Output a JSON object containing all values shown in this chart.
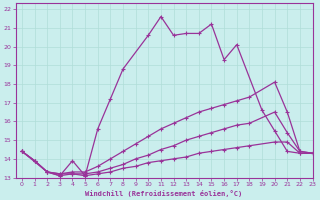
{
  "title": "",
  "xlabel": "Windchill (Refroidissement éolien,°C)",
  "ylabel": "",
  "xlim": [
    -0.5,
    23
  ],
  "ylim": [
    13,
    22.3
  ],
  "yticks": [
    13,
    14,
    15,
    16,
    17,
    18,
    19,
    20,
    21,
    22
  ],
  "xticks": [
    0,
    1,
    2,
    3,
    4,
    5,
    6,
    7,
    8,
    9,
    10,
    11,
    12,
    13,
    14,
    15,
    16,
    17,
    18,
    19,
    20,
    21,
    22,
    23
  ],
  "bg_color": "#caeeed",
  "line_color": "#993399",
  "grid_color": "#b0ddd8",
  "lines": [
    {
      "x": [
        0,
        1,
        2,
        3,
        4,
        5,
        6,
        7,
        8,
        10,
        11,
        12,
        13,
        14,
        15,
        16,
        17,
        19,
        20,
        21,
        22,
        23
      ],
      "y": [
        14.4,
        13.9,
        13.3,
        13.1,
        13.9,
        13.1,
        15.6,
        17.2,
        18.8,
        20.6,
        21.6,
        20.6,
        20.7,
        20.7,
        21.2,
        19.3,
        20.1,
        16.6,
        15.5,
        14.4,
        14.3,
        14.3
      ]
    },
    {
      "x": [
        0,
        1,
        2,
        3,
        4,
        5,
        6,
        7,
        8,
        9,
        10,
        11,
        12,
        13,
        14,
        15,
        16,
        17,
        18,
        20,
        21,
        22,
        23
      ],
      "y": [
        14.4,
        13.9,
        13.3,
        13.2,
        13.3,
        13.3,
        13.6,
        14.0,
        14.4,
        14.8,
        15.2,
        15.6,
        15.9,
        16.2,
        16.5,
        16.7,
        16.9,
        17.1,
        17.3,
        18.1,
        16.5,
        14.4,
        14.3
      ]
    },
    {
      "x": [
        0,
        1,
        2,
        3,
        4,
        5,
        6,
        7,
        8,
        9,
        10,
        11,
        12,
        13,
        14,
        15,
        16,
        17,
        18,
        20,
        21,
        22,
        23
      ],
      "y": [
        14.4,
        13.9,
        13.3,
        13.2,
        13.2,
        13.2,
        13.3,
        13.5,
        13.7,
        14.0,
        14.2,
        14.5,
        14.7,
        15.0,
        15.2,
        15.4,
        15.6,
        15.8,
        15.9,
        16.5,
        15.4,
        14.4,
        14.3
      ]
    },
    {
      "x": [
        0,
        2,
        3,
        4,
        5,
        6,
        7,
        8,
        9,
        10,
        11,
        12,
        13,
        14,
        15,
        16,
        17,
        18,
        20,
        21,
        22,
        23
      ],
      "y": [
        14.4,
        13.3,
        13.1,
        13.2,
        13.1,
        13.2,
        13.3,
        13.5,
        13.6,
        13.8,
        13.9,
        14.0,
        14.1,
        14.3,
        14.4,
        14.5,
        14.6,
        14.7,
        14.9,
        14.9,
        14.3,
        14.3
      ]
    }
  ]
}
